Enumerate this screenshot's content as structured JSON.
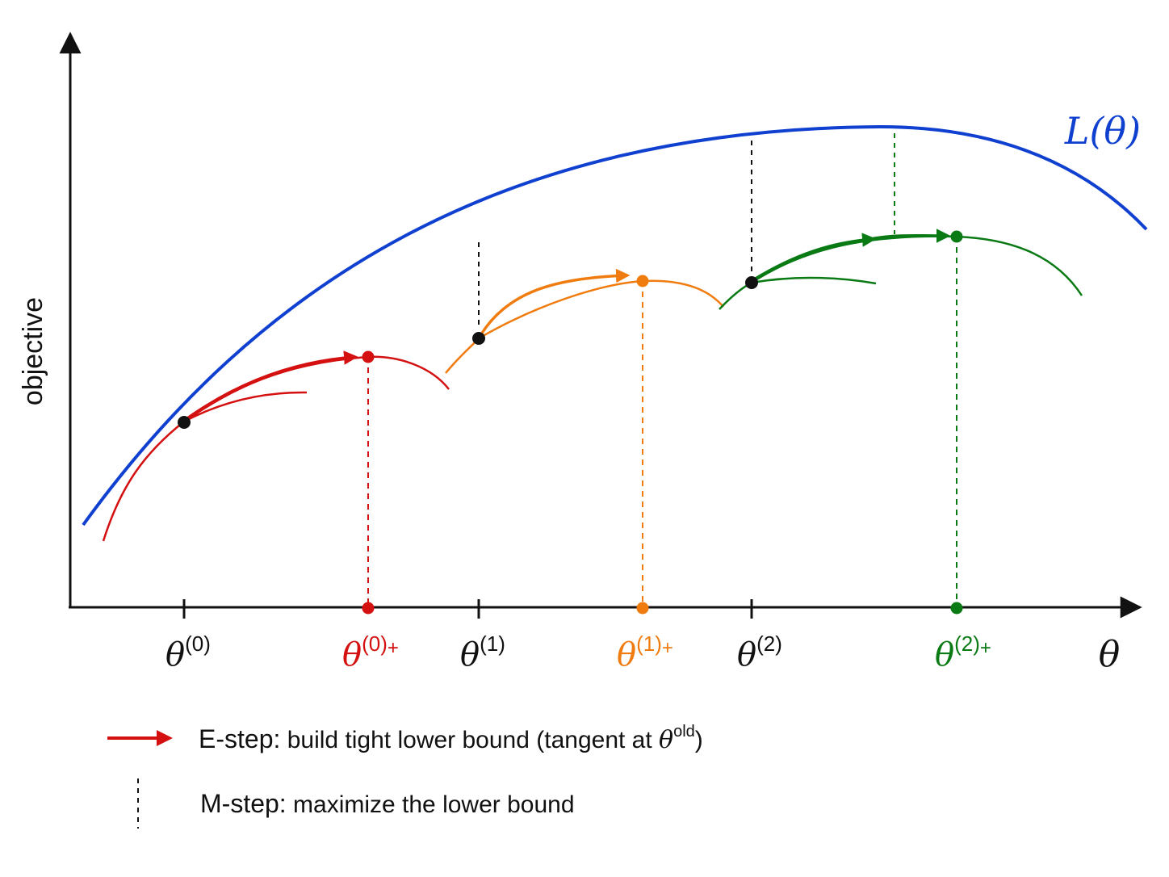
{
  "axes": {
    "y_label": "objective",
    "x_symbol": "θ"
  },
  "curve": {
    "label": "L(θ)",
    "color": "#1040d0"
  },
  "ticks": [
    {
      "base": "θ",
      "sup": "(0)",
      "suffix": "",
      "color": "#111111"
    },
    {
      "base": "θ",
      "sup": "(0)",
      "suffix": "+",
      "color": "#d41010"
    },
    {
      "base": "θ",
      "sup": "(1)",
      "suffix": "",
      "color": "#111111"
    },
    {
      "base": "θ",
      "sup": "(1)",
      "suffix": "+",
      "color": "#f07c10"
    },
    {
      "base": "θ",
      "sup": "(2)",
      "suffix": "",
      "color": "#111111"
    },
    {
      "base": "θ",
      "sup": "(2)",
      "suffix": "+",
      "color": "#0a7a14"
    }
  ],
  "colors": {
    "iter0": "#d41010",
    "iter1": "#f07c10",
    "iter2": "#0a7a14",
    "axis": "#111111"
  },
  "legend": {
    "e_step": {
      "bold": "E-step:",
      "text": " build tight lower bound (tangent at ",
      "math": "θ",
      "sup": "old",
      "close": ")"
    },
    "m_step": {
      "bold": "M-step:",
      "text": " maximize the lower bound"
    }
  }
}
